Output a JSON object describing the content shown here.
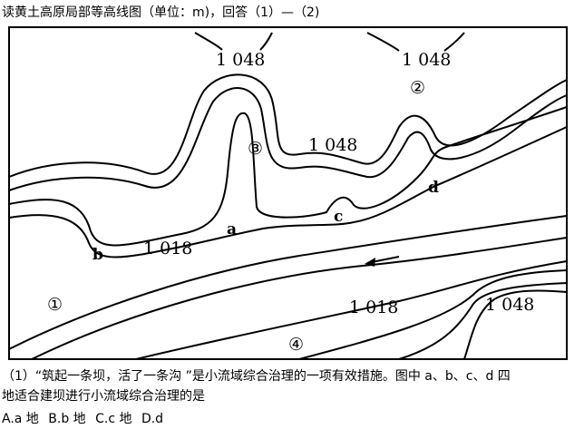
{
  "title": "读黄土高原局部等高线图（单位：m)，回答（1）—（2)",
  "map": {
    "contour_labels": [
      "1 048",
      "1 048",
      "1 048",
      "1 048",
      "1 018",
      "1 018"
    ],
    "points": [
      "a",
      "b",
      "c",
      "d"
    ],
    "regions": [
      "①",
      "②",
      "③",
      "④"
    ]
  },
  "question": {
    "line1": "（1）“筑起一条坝，活了一条沟 ”是小流域综合治理的一项有效措施。图中  a、b、c、d 四",
    "line2": "地适合建坝进行小流域综合治理的是",
    "options": [
      "A.a 地",
      "B.b 地",
      "C.c 地",
      "D.d"
    ]
  }
}
